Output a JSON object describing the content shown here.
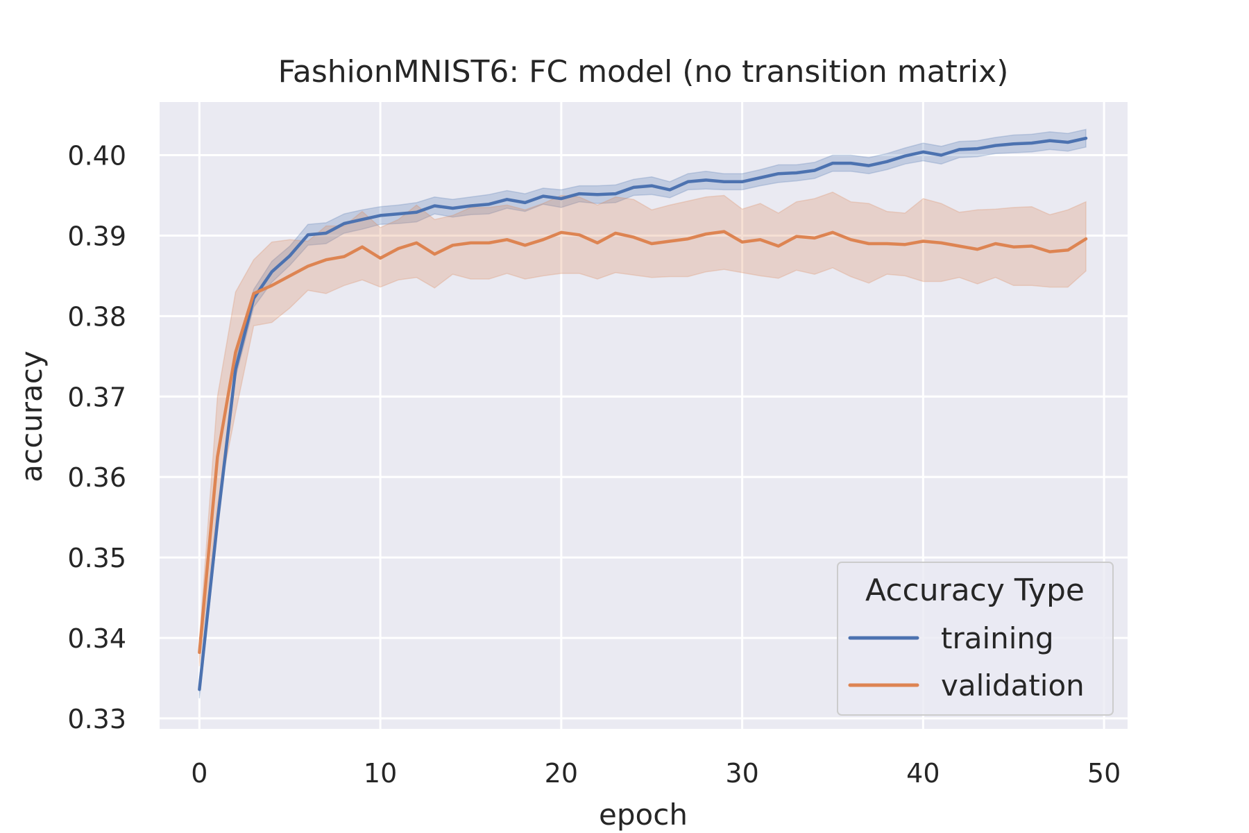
{
  "chart_data": {
    "type": "line",
    "title": "FashionMNIST6: FC model (no transition matrix)",
    "xlabel": "epoch",
    "ylabel": "accuracy",
    "xlim": [
      -2.2,
      51.3
    ],
    "ylim": [
      0.3287,
      0.4066
    ],
    "xticks": [
      0,
      10,
      20,
      30,
      40,
      50
    ],
    "yticks": [
      0.33,
      0.34,
      0.35,
      0.36,
      0.37,
      0.38,
      0.39,
      0.4
    ],
    "xtick_labels": [
      "0",
      "10",
      "20",
      "30",
      "40",
      "50"
    ],
    "ytick_labels": [
      "0.33",
      "0.34",
      "0.35",
      "0.36",
      "0.37",
      "0.38",
      "0.39",
      "0.40"
    ],
    "grid": true,
    "legend": {
      "title": "Accuracy Type",
      "placement": "lower-right"
    },
    "x": [
      0,
      1,
      2,
      3,
      4,
      5,
      6,
      7,
      8,
      9,
      10,
      11,
      12,
      13,
      14,
      15,
      16,
      17,
      18,
      19,
      20,
      21,
      22,
      23,
      24,
      25,
      26,
      27,
      28,
      29,
      30,
      31,
      32,
      33,
      34,
      35,
      36,
      37,
      38,
      39,
      40,
      41,
      42,
      43,
      44,
      45,
      46,
      47,
      48,
      49
    ],
    "series": [
      {
        "name": "training",
        "color": "#4c72b0",
        "values": [
          0.3336,
          0.3545,
          0.3734,
          0.3822,
          0.3855,
          0.3875,
          0.3901,
          0.3903,
          0.3915,
          0.392,
          0.3925,
          0.3927,
          0.3929,
          0.3937,
          0.3934,
          0.3937,
          0.3939,
          0.3945,
          0.3941,
          0.3949,
          0.3946,
          0.3952,
          0.3951,
          0.3952,
          0.396,
          0.3962,
          0.3957,
          0.3967,
          0.3969,
          0.3967,
          0.3967,
          0.3972,
          0.3977,
          0.3978,
          0.3981,
          0.399,
          0.399,
          0.3987,
          0.3992,
          0.3999,
          0.4004,
          0.4,
          0.4007,
          0.4008,
          0.4012,
          0.4014,
          0.4015,
          0.4018,
          0.4016,
          0.4021
        ],
        "ci_low": [
          0.3325,
          0.3532,
          0.3724,
          0.3811,
          0.3842,
          0.3863,
          0.3888,
          0.389,
          0.3903,
          0.3908,
          0.3914,
          0.3915,
          0.3917,
          0.3927,
          0.3923,
          0.3926,
          0.3927,
          0.3934,
          0.393,
          0.3939,
          0.3935,
          0.3942,
          0.394,
          0.3941,
          0.395,
          0.3951,
          0.3947,
          0.3957,
          0.3958,
          0.3957,
          0.3957,
          0.3962,
          0.3966,
          0.3968,
          0.3971,
          0.398,
          0.398,
          0.3977,
          0.3982,
          0.3989,
          0.3993,
          0.3989,
          0.3997,
          0.3998,
          0.4002,
          0.4003,
          0.4004,
          0.4007,
          0.4005,
          0.401
        ],
        "ci_high": [
          0.3347,
          0.3558,
          0.3745,
          0.3833,
          0.3868,
          0.3887,
          0.3914,
          0.3916,
          0.3927,
          0.3932,
          0.3936,
          0.3938,
          0.3941,
          0.3948,
          0.3945,
          0.3948,
          0.3951,
          0.3956,
          0.3952,
          0.3959,
          0.3957,
          0.3962,
          0.3962,
          0.3963,
          0.397,
          0.3973,
          0.3967,
          0.3977,
          0.398,
          0.3977,
          0.3977,
          0.3982,
          0.3988,
          0.3988,
          0.3991,
          0.4,
          0.4,
          0.3997,
          0.4002,
          0.4009,
          0.4015,
          0.4011,
          0.4017,
          0.4018,
          0.4022,
          0.4025,
          0.4026,
          0.4029,
          0.4027,
          0.4032
        ]
      },
      {
        "name": "validation",
        "color": "#dd8452",
        "values": [
          0.3382,
          0.3625,
          0.3755,
          0.3828,
          0.3838,
          0.385,
          0.3862,
          0.387,
          0.3874,
          0.3886,
          0.3872,
          0.3884,
          0.3891,
          0.3877,
          0.3888,
          0.3891,
          0.3891,
          0.3895,
          0.3888,
          0.3895,
          0.3904,
          0.3901,
          0.3891,
          0.3903,
          0.3898,
          0.389,
          0.3893,
          0.3896,
          0.3902,
          0.3905,
          0.3892,
          0.3895,
          0.3887,
          0.3899,
          0.3897,
          0.3904,
          0.3895,
          0.389,
          0.389,
          0.3889,
          0.3893,
          0.3891,
          0.3887,
          0.3883,
          0.389,
          0.3886,
          0.3887,
          0.388,
          0.3882,
          0.3896
        ],
        "ci_low": [
          0.3365,
          0.3565,
          0.368,
          0.3788,
          0.3792,
          0.381,
          0.3832,
          0.3828,
          0.3838,
          0.3845,
          0.3836,
          0.3845,
          0.3848,
          0.3835,
          0.3852,
          0.3846,
          0.3846,
          0.3853,
          0.3846,
          0.385,
          0.3853,
          0.3853,
          0.3846,
          0.3854,
          0.3851,
          0.3848,
          0.3849,
          0.3849,
          0.3855,
          0.3858,
          0.3854,
          0.385,
          0.3847,
          0.3857,
          0.3852,
          0.386,
          0.3849,
          0.3841,
          0.3852,
          0.385,
          0.3843,
          0.3843,
          0.3848,
          0.384,
          0.3848,
          0.3838,
          0.3838,
          0.3836,
          0.3836,
          0.3856
        ],
        "ci_high": [
          0.3398,
          0.37,
          0.383,
          0.387,
          0.3892,
          0.3895,
          0.3893,
          0.3912,
          0.3912,
          0.393,
          0.391,
          0.392,
          0.3938,
          0.392,
          0.3925,
          0.3935,
          0.3935,
          0.3938,
          0.3932,
          0.394,
          0.395,
          0.3948,
          0.3938,
          0.3948,
          0.3945,
          0.3932,
          0.3938,
          0.3943,
          0.3948,
          0.395,
          0.3933,
          0.394,
          0.3928,
          0.3942,
          0.3946,
          0.3954,
          0.3942,
          0.394,
          0.393,
          0.3928,
          0.3946,
          0.394,
          0.3929,
          0.3932,
          0.3933,
          0.3935,
          0.3936,
          0.3926,
          0.3932,
          0.3942
        ]
      }
    ]
  }
}
